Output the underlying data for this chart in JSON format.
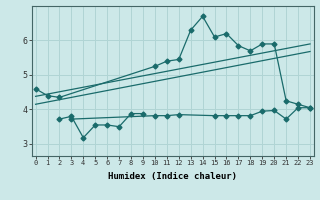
{
  "title": "",
  "xlabel": "Humidex (Indice chaleur)",
  "bg_color": "#cce8e8",
  "grid_color": "#b0d4d4",
  "line_color": "#1a6b6b",
  "x_ticks": [
    0,
    1,
    2,
    3,
    4,
    5,
    6,
    7,
    8,
    9,
    10,
    11,
    12,
    13,
    14,
    15,
    16,
    17,
    18,
    19,
    20,
    21,
    22,
    23
  ],
  "y_ticks": [
    3,
    4,
    5,
    6
  ],
  "ylim": [
    2.65,
    7.0
  ],
  "xlim": [
    -0.3,
    23.3
  ],
  "upper_curve_x": [
    0,
    1,
    2,
    10,
    11,
    12,
    13,
    14,
    15,
    16,
    17,
    18,
    19,
    20,
    21,
    22,
    23
  ],
  "upper_curve_y": [
    4.6,
    4.4,
    4.35,
    5.25,
    5.4,
    5.45,
    6.3,
    6.7,
    6.1,
    6.2,
    5.85,
    5.7,
    5.9,
    5.9,
    4.25,
    4.15,
    4.05
  ],
  "lower_zigzag_x": [
    2,
    3,
    4,
    5,
    6,
    7,
    8,
    9
  ],
  "lower_zigzag_y": [
    3.72,
    3.8,
    3.18,
    3.55,
    3.55,
    3.5,
    3.88,
    3.88
  ],
  "flat_line_x": [
    3,
    10,
    11,
    12,
    15,
    16,
    17,
    18,
    19,
    20,
    21,
    22,
    23
  ],
  "flat_line_y": [
    3.72,
    3.82,
    3.82,
    3.85,
    3.82,
    3.82,
    3.82,
    3.82,
    3.95,
    3.97,
    3.72,
    4.05,
    4.05
  ],
  "trend1_x": [
    0,
    23
  ],
  "trend1_y": [
    4.38,
    5.9
  ],
  "trend2_x": [
    0,
    23
  ],
  "trend2_y": [
    4.15,
    5.68
  ],
  "markersize": 2.5
}
